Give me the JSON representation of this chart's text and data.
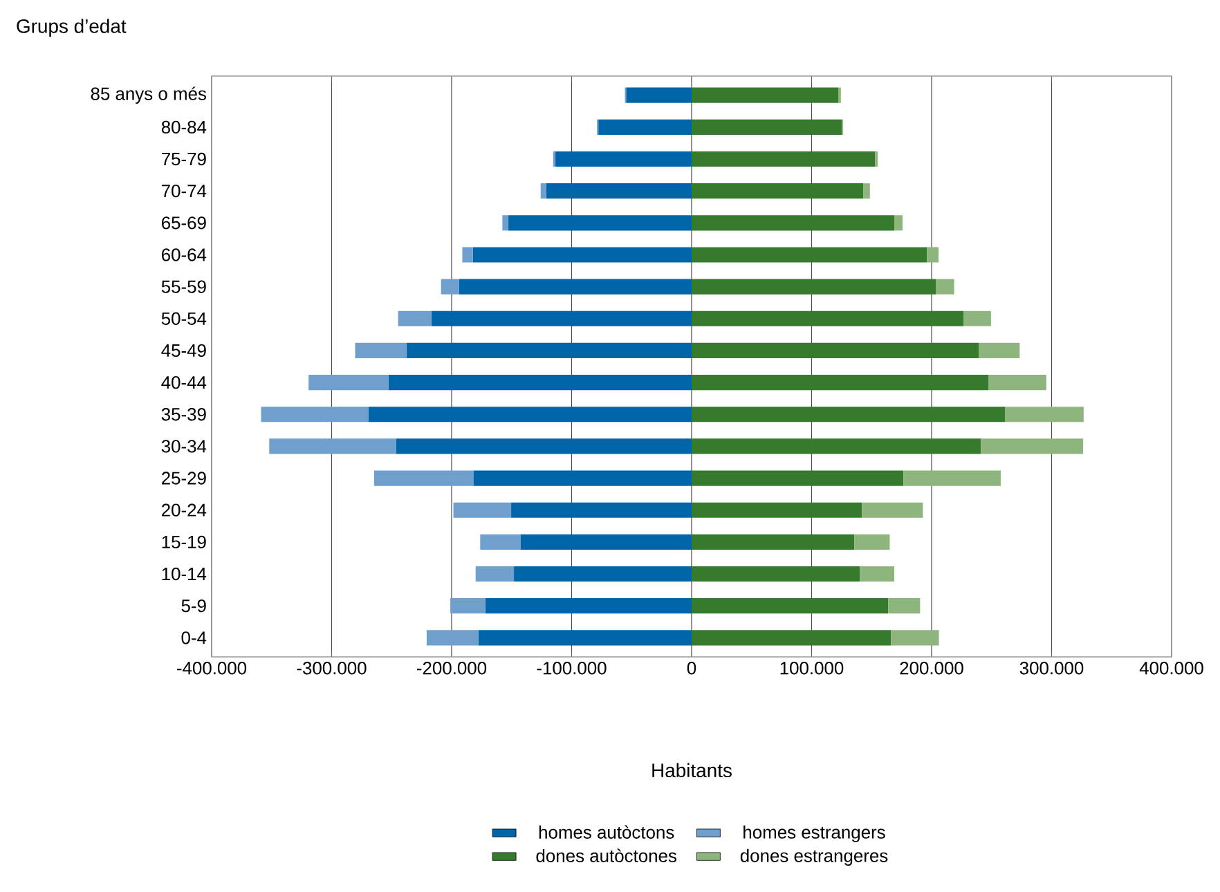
{
  "chart_data": {
    "type": "bar",
    "orientation": "horizontal",
    "stacked": true,
    "xlabel": "Habitants",
    "ylabel": "Grups d’edat",
    "categories": [
      "85 anys o més",
      "80-84",
      "75-79",
      "70-74",
      "65-69",
      "60-64",
      "55-59",
      "50-54",
      "45-49",
      "40-44",
      "35-39",
      "30-34",
      "25-29",
      "20-24",
      "15-19",
      "10-14",
      "5-9",
      "0-4"
    ],
    "series": [
      {
        "name": "homes autòctons",
        "color": "#0064a8",
        "values": [
          -54600,
          -77700,
          -113500,
          -121200,
          -152700,
          -182300,
          -193800,
          -216900,
          -237700,
          -252700,
          -269200,
          -246200,
          -181900,
          -150400,
          -142700,
          -148100,
          -171900,
          -177700
        ]
      },
      {
        "name": "homes estrangers",
        "color": "#6f9fcc",
        "values": [
          -1000,
          -1200,
          -1900,
          -4600,
          -5000,
          -8800,
          -15000,
          -27700,
          -42700,
          -66500,
          -89600,
          -105800,
          -82700,
          -48100,
          -33500,
          -31900,
          -29200,
          -43100
        ]
      },
      {
        "name": "dones autòctones",
        "color": "#367a2e",
        "values": [
          122500,
          125100,
          152800,
          143200,
          168900,
          196200,
          203800,
          226500,
          239200,
          247600,
          261400,
          241100,
          176600,
          142000,
          135500,
          140100,
          163900,
          166200
        ]
      },
      {
        "name": "dones estrangeres",
        "color": "#8fb57e",
        "values": [
          1900,
          1200,
          2300,
          5400,
          6900,
          9600,
          15000,
          23000,
          34200,
          48000,
          65300,
          85200,
          81000,
          50700,
          29600,
          28800,
          26500,
          39900
        ]
      }
    ],
    "xlim": [
      -400000,
      400000
    ],
    "xticks": [
      {
        "value": -400000,
        "label": "-400.000"
      },
      {
        "value": -300000,
        "label": "-300.000"
      },
      {
        "value": -200000,
        "label": "-200.000"
      },
      {
        "value": -100000,
        "label": "-100.000"
      },
      0,
      {
        "value": 100000,
        "label": "100.000"
      },
      {
        "value": 200000,
        "label": "200.000"
      },
      {
        "value": 300000,
        "label": "300.000"
      },
      {
        "value": 400000,
        "label": "400.000"
      }
    ],
    "grid": "x",
    "legend": "bottom"
  }
}
